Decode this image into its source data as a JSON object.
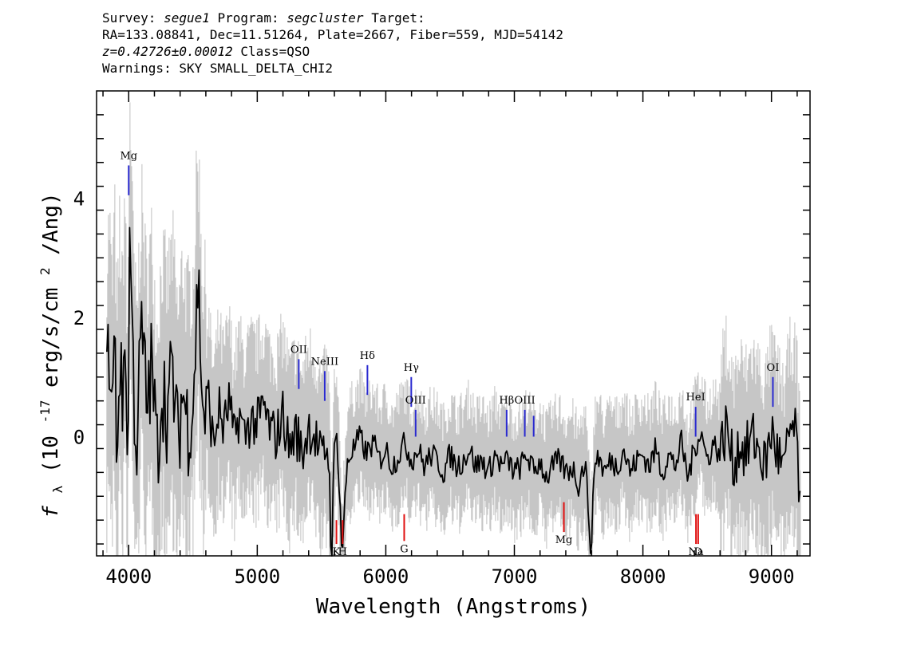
{
  "header": {
    "survey_label": "Survey:",
    "survey": "segue1",
    "program_label": "Program:",
    "program": "segcluster",
    "target_label": "Target:",
    "line2": "RA=133.08841, Dec=11.51264, Plate=2667, Fiber=559, MJD=54142",
    "redshift": "z=0.42726±0.00012",
    "class": "Class=QSO",
    "warnings": "Warnings: SKY SMALL_DELTA_CHI2"
  },
  "chart_data": {
    "type": "line",
    "xlabel": "Wavelength (Angstroms)",
    "ylabel_prefix": "f",
    "ylabel_sub": "λ",
    "ylabel_main": "(10",
    "ylabel_exp": "-17",
    "ylabel_unit": "erg/s/cm",
    "ylabel_sq": "2",
    "ylabel_tail": "/Ang)",
    "xlim": [
      3750,
      9300
    ],
    "ylim": [
      -2.0,
      5.8
    ],
    "x_ticks": [
      4000,
      5000,
      6000,
      7000,
      8000,
      9000
    ],
    "x_tick_labels": [
      "4000",
      "5000",
      "6000",
      "7000",
      "8000",
      "9000"
    ],
    "y_ticks": [
      0,
      2,
      4
    ],
    "y_tick_labels": [
      "0",
      "2",
      "4"
    ],
    "series": [
      {
        "role": "flux",
        "color": "#000000",
        "x": [
          3830,
          3850,
          3870,
          3890,
          3910,
          3930,
          3950,
          3970,
          3990,
          4010,
          4030,
          4060,
          4100,
          4140,
          4180,
          4220,
          4260,
          4300,
          4340,
          4380,
          4420,
          4460,
          4500,
          4540,
          4580,
          4620,
          4660,
          4700,
          4740,
          4780,
          4820,
          4860,
          4900,
          4950,
          5000,
          5050,
          5100,
          5150,
          5200,
          5250,
          5300,
          5350,
          5400,
          5450,
          5500,
          5550,
          5580,
          5600,
          5620,
          5660,
          5700,
          5750,
          5800,
          5850,
          5900,
          5950,
          6000,
          6050,
          6100,
          6150,
          6200,
          6250,
          6300,
          6350,
          6400,
          6450,
          6500,
          6550,
          6600,
          6650,
          6700,
          6750,
          6800,
          6850,
          6900,
          6950,
          7000,
          7050,
          7100,
          7150,
          7200,
          7250,
          7300,
          7350,
          7400,
          7450,
          7500,
          7550,
          7600,
          7620,
          7650,
          7700,
          7750,
          7800,
          7850,
          7900,
          7950,
          8000,
          8050,
          8100,
          8150,
          8200,
          8250,
          8300,
          8350,
          8400,
          8450,
          8500,
          8550,
          8600,
          8650,
          8700,
          8750,
          8800,
          8850,
          8900,
          8950,
          9000,
          9050,
          9100,
          9150,
          9200,
          9230
        ],
        "y": [
          0.8,
          1.6,
          0.3,
          1.7,
          -0.4,
          1.5,
          0.2,
          2.2,
          -0.8,
          3.8,
          1.4,
          -0.2,
          1.8,
          0.5,
          1.2,
          -0.3,
          0.9,
          0.4,
          1.1,
          -0.1,
          0.8,
          0.2,
          0.6,
          2.7,
          0.3,
          0.7,
          -0.2,
          0.5,
          0.1,
          0.6,
          -0.1,
          0.4,
          0.0,
          0.3,
          0.2,
          0.5,
          0.1,
          0.0,
          0.4,
          -0.2,
          0.1,
          -0.3,
          0.2,
          0.0,
          -0.4,
          -0.1,
          -2.0,
          -0.3,
          0.1,
          -2.0,
          -0.4,
          -0.2,
          0.0,
          -0.3,
          -0.1,
          -0.4,
          -0.2,
          -0.5,
          -0.3,
          -0.1,
          -0.4,
          -0.2,
          -0.5,
          -0.3,
          -0.4,
          -0.6,
          -0.3,
          -0.5,
          -0.4,
          -0.2,
          -0.5,
          -0.4,
          -0.6,
          -0.3,
          -0.5,
          -0.4,
          -0.6,
          -0.5,
          -0.3,
          -0.6,
          -0.4,
          -0.7,
          -0.5,
          -0.4,
          -0.6,
          -0.5,
          -0.8,
          -0.4,
          -2.0,
          -0.5,
          -0.3,
          -0.6,
          -0.4,
          -0.5,
          -0.2,
          -0.6,
          -0.4,
          -0.3,
          -0.5,
          -0.2,
          -0.6,
          -0.3,
          -0.5,
          -0.1,
          -0.7,
          -0.2,
          0.1,
          -0.4,
          -0.1,
          -0.3,
          0.2,
          -0.5,
          -0.1,
          -0.3,
          0.0,
          -0.2,
          -0.5,
          0.1,
          -0.3,
          -0.6,
          0.2,
          -0.1,
          -1.7
        ]
      }
    ],
    "emission_lines": [
      {
        "label": "Mg",
        "x": 4000,
        "y_top": 4.55,
        "y_bot": 4.05
      },
      {
        "label": "OII",
        "x": 5323,
        "y_top": 1.3,
        "y_bot": 0.8
      },
      {
        "label": "NeIII",
        "x": 5525,
        "y_top": 1.1,
        "y_bot": 0.6
      },
      {
        "label": "Hδ",
        "x": 5857,
        "y_top": 1.2,
        "y_bot": 0.7
      },
      {
        "label": "Hγ",
        "x": 6198,
        "y_top": 1.0,
        "y_bot": 0.5
      },
      {
        "label": "OIII",
        "x": 6232,
        "y_top": 0.45,
        "y_bot": 0.0
      },
      {
        "label": "Hβ",
        "x": 6940,
        "y_top": 0.45,
        "y_bot": 0.0
      },
      {
        "label": "OIII",
        "x": 7081,
        "y_top": 0.45,
        "y_bot": 0.0
      },
      {
        "label": "",
        "x": 7150,
        "y_top": 0.35,
        "y_bot": 0.0
      },
      {
        "label": "HeI",
        "x": 8410,
        "y_top": 0.5,
        "y_bot": 0.0
      },
      {
        "label": "OI",
        "x": 9011,
        "y_top": 1.0,
        "y_bot": 0.5
      }
    ],
    "absorption_lines": [
      {
        "label": "K",
        "x": 5616,
        "y_top": -1.4,
        "y_bot": -1.8
      },
      {
        "label": "H",
        "x": 5664,
        "y_top": -1.4,
        "y_bot": -1.8
      },
      {
        "label": "G",
        "x": 6143,
        "y_top": -1.3,
        "y_bot": -1.75
      },
      {
        "label": "Mg",
        "x": 7385,
        "y_top": -1.1,
        "y_bot": -1.6
      },
      {
        "label": "Na",
        "x": 8413,
        "y_top": -1.3,
        "y_bot": -1.8
      },
      {
        "label": "D",
        "x": 8430,
        "y_top": -1.3,
        "y_bot": -1.8
      }
    ],
    "colors": {
      "flux": "#000000",
      "error_band": "#c0c0c0",
      "emission": "#2a2ad0",
      "absorption": "#e01010"
    }
  }
}
